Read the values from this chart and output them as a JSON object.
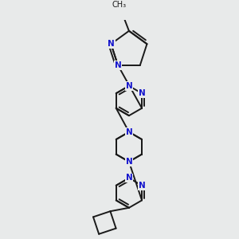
{
  "bg_color": "#e8eaea",
  "bond_color": "#1a1a1a",
  "atom_color": "#1414cc",
  "lw": 1.4,
  "fs": 7.5,
  "dpi": 100,
  "fig_size": [
    3.0,
    3.0
  ],
  "xlim": [
    -2.2,
    2.2
  ],
  "ylim": [
    -4.5,
    3.5
  ]
}
